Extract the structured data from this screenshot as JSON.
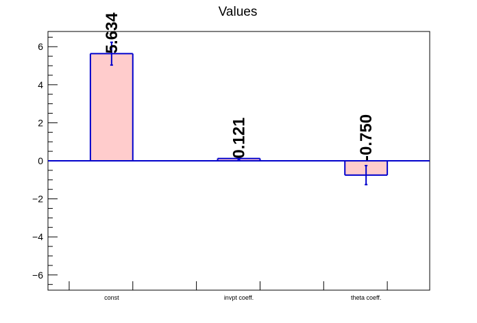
{
  "chart_data": {
    "type": "bar",
    "title": "Values",
    "xlabel": "",
    "ylabel": "",
    "categories": [
      "const",
      "invpt coeff.",
      "theta coeff."
    ],
    "values": [
      5.634,
      0.121,
      -0.75
    ],
    "errors": [
      0.6,
      0.07,
      0.5
    ],
    "data_labels": [
      "5.634",
      "0.121",
      "-0.750"
    ],
    "ylim": [
      -6.8,
      6.8
    ],
    "yticks": [
      -6,
      -4,
      -2,
      0,
      2,
      4,
      6
    ],
    "ytick_labels": [
      "−6",
      "−4",
      "−2",
      "0",
      "2",
      "4",
      "6"
    ],
    "grid": false,
    "legend": "none",
    "colors": {
      "bar_fill": "#ffcccc",
      "bar_edge": "#0000cc",
      "zero_line": "#0000cc",
      "axis": "#000000"
    }
  }
}
